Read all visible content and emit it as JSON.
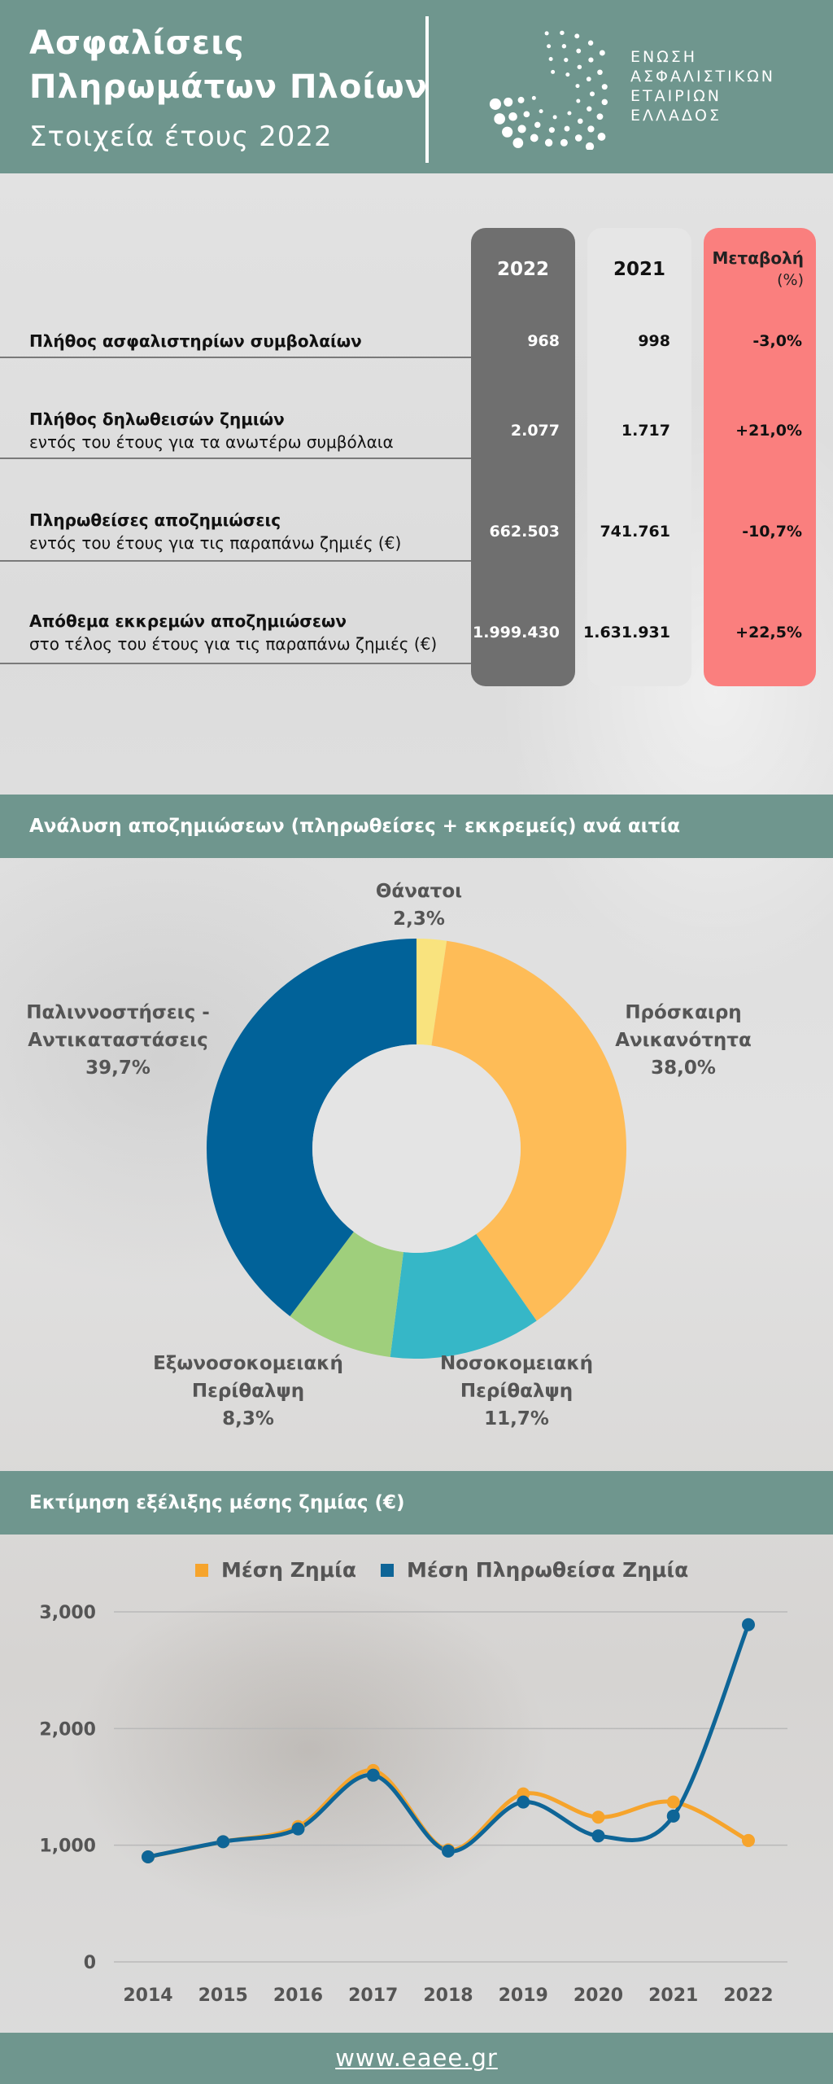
{
  "header": {
    "title": "Ασφαλίσεις\nΠληρωμάτων Πλοίων",
    "subtitle": "Στοιχεία έτους 2022",
    "logo_lines": [
      "ΕΝΩΣΗ",
      "ΑΣΦΑΛΙΣΤΙΚΩΝ",
      "ΕΤΑΙΡΙΩΝ",
      "ΕΛΛΑΔΟΣ"
    ]
  },
  "table": {
    "col_2022": "2022",
    "col_2021": "2021",
    "col_change": "Μεταβολή",
    "col_change_unit": "(%)",
    "rows": [
      {
        "label": "Πλήθος ασφαλιστηρίων συμβολαίων",
        "sub": "",
        "v2022": "968",
        "v2021": "998",
        "change": "-3,0%"
      },
      {
        "label": "Πλήθος δηλωθεισών ζημιών",
        "sub": "εντός του έτους για τα ανωτέρω συμβόλαια",
        "v2022": "2.077",
        "v2021": "1.717",
        "change": "+21,0%"
      },
      {
        "label": "Πληρωθείσες αποζημιώσεις",
        "sub": "εντός του έτους για τις παραπάνω ζημιές (€)",
        "v2022": "662.503",
        "v2021": "741.761",
        "change": "-10,7%"
      },
      {
        "label": "Απόθεμα εκκρεμών αποζημιώσεων",
        "sub": "στο τέλος του έτους για τις παραπάνω ζημιές (€)",
        "v2022": "1.999.430",
        "v2021": "1.631.931",
        "change": "+22,5%"
      }
    ]
  },
  "section_pie": {
    "title": "Ανάλυση αποζημιώσεων (πληρωθείσες + εκκρεμείς) ανά αιτία"
  },
  "section_line": {
    "title": "Εκτίμηση εξέλιξης μέσης ζημίας (€)"
  },
  "footer": {
    "link": "www.eaee.gr"
  },
  "chart_data": [
    {
      "type": "pie",
      "donut": true,
      "slices": [
        {
          "label": "Θάνατοι",
          "value_label": "2,3%",
          "value": 2.3,
          "color": "#f9e37e"
        },
        {
          "label": "Πρόσκαιρη Ανικανότητα",
          "value_label": "38,0%",
          "value": 38.0,
          "color": "#febc57"
        },
        {
          "label": "Νοσοκομειακή Περίθαλψη",
          "value_label": "11,7%",
          "value": 11.7,
          "color": "#36b7c7"
        },
        {
          "label": "Εξωνοσοκομειακή Περίθαλψη",
          "value_label": "8,3%",
          "value": 8.3,
          "color": "#9fcf7c"
        },
        {
          "label": "Παλιννοστήσεις - Αντικαταστάσεις",
          "value_label": "39,7%",
          "value": 39.7,
          "color": "#016299"
        }
      ]
    },
    {
      "type": "line",
      "x": [
        "2014",
        "2015",
        "2016",
        "2017",
        "2018",
        "2019",
        "2020",
        "2021",
        "2022"
      ],
      "series": [
        {
          "name": "Μέση  Ζημία",
          "color": "#f6a42c",
          "values": [
            900,
            1030,
            1160,
            1640,
            960,
            1440,
            1240,
            1370,
            1040
          ]
        },
        {
          "name": "Μέση  Πληρωθείσα  Ζημία",
          "color": "#0e6597",
          "values": [
            900,
            1030,
            1140,
            1600,
            950,
            1370,
            1080,
            1250,
            2890
          ]
        }
      ],
      "y_ticks": [
        "0",
        "1,000",
        "2,000",
        "3,000"
      ],
      "ylim": [
        0,
        3000
      ],
      "grid": true,
      "legend": "top"
    }
  ]
}
